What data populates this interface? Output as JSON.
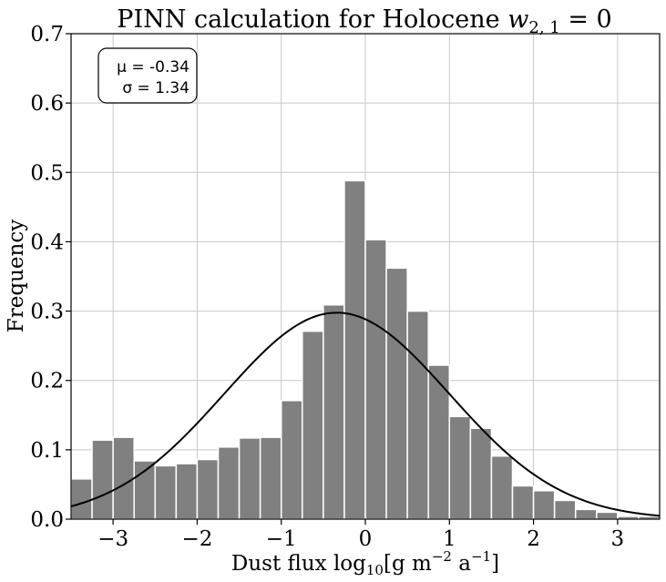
{
  "chart_data": {
    "type": "bar",
    "title_main": "PINN calculation for Holocene ",
    "title_math": "w",
    "title_sub": "2, 1",
    "title_tail": " = 0",
    "xlabel_main": "Dust flux log",
    "xlabel_sub": "10",
    "xlabel_mid": "[g m",
    "xlabel_sup1": "−2",
    "xlabel_mid2": " a",
    "xlabel_sup2": "−1",
    "xlabel_end": "]",
    "ylabel": "Frequency",
    "xlim": [
      -3.5,
      3.5
    ],
    "ylim": [
      0,
      0.7
    ],
    "xticks": [
      -3,
      -2,
      -1,
      0,
      1,
      2,
      3
    ],
    "xtick_labels": [
      "−3",
      "−2",
      "−1",
      "0",
      "1",
      "2",
      "3"
    ],
    "yticks": [
      0,
      0.1,
      0.2,
      0.3,
      0.4,
      0.5,
      0.6,
      0.7
    ],
    "ytick_labels": [
      "0.0",
      "0.1",
      "0.2",
      "0.3",
      "0.4",
      "0.5",
      "0.6",
      "0.7"
    ],
    "bin_start": -3.5,
    "bin_width": 0.25,
    "values": [
      0.058,
      0.114,
      0.118,
      0.084,
      0.077,
      0.08,
      0.086,
      0.104,
      0.117,
      0.118,
      0.171,
      0.271,
      0.309,
      0.488,
      0.403,
      0.362,
      0.3,
      0.222,
      0.148,
      0.131,
      0.091,
      0.048,
      0.041,
      0.027,
      0.014,
      0.01,
      0.004,
      0.004
    ],
    "fit": {
      "mu": -0.34,
      "sigma": 1.34
    },
    "annotation": {
      "mu_label": "μ = -0.34",
      "sigma_label": "σ = 1.34"
    },
    "grid": true,
    "colors": {
      "bar": "#808080",
      "bar_edge": "#ffffff",
      "curve": "#000000",
      "grid": "#c8c8c8"
    }
  }
}
